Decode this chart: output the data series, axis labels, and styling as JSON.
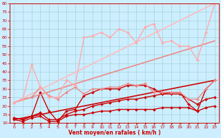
{
  "xlabel": "Vent moyen/en rafales ( km/h )",
  "xlim": [
    -0.5,
    23.5
  ],
  "ylim": [
    10,
    80
  ],
  "yticks": [
    10,
    15,
    20,
    25,
    30,
    35,
    40,
    45,
    50,
    55,
    60,
    65,
    70,
    75,
    80
  ],
  "xticks": [
    0,
    1,
    2,
    3,
    4,
    5,
    6,
    7,
    8,
    9,
    10,
    11,
    12,
    13,
    14,
    15,
    16,
    17,
    18,
    19,
    20,
    21,
    22,
    23
  ],
  "bg_color": "#cceeff",
  "grid_color": "#99cccc",
  "series": [
    {
      "x": [
        0,
        1,
        2,
        3,
        4,
        5,
        6,
        7,
        8,
        9,
        10,
        11,
        12,
        13,
        14,
        15,
        16,
        17,
        18,
        19,
        20,
        21,
        22,
        23
      ],
      "y": [
        12,
        11,
        13,
        14,
        11,
        11,
        14,
        15,
        15,
        16,
        17,
        17,
        18,
        18,
        18,
        18,
        18,
        19,
        19,
        19,
        19,
        17,
        19,
        20
      ],
      "color": "#cc0000",
      "lw": 1.0,
      "marker": "D",
      "ms": 2.0
    },
    {
      "x": [
        0,
        1,
        2,
        3,
        4,
        5,
        6,
        7,
        8,
        9,
        10,
        11,
        12,
        13,
        14,
        15,
        16,
        17,
        18,
        19,
        20,
        21,
        22,
        23
      ],
      "y": [
        13,
        12,
        14,
        16,
        12,
        12,
        15,
        17,
        18,
        20,
        21,
        22,
        23,
        24,
        24,
        25,
        26,
        27,
        27,
        27,
        24,
        21,
        24,
        25
      ],
      "color": "#cc0000",
      "lw": 1.0,
      "marker": "D",
      "ms": 2.0
    },
    {
      "x": [
        0,
        1,
        2,
        3,
        4,
        5,
        6,
        7,
        8,
        9,
        10,
        11,
        12,
        13,
        14,
        15,
        16,
        17,
        18,
        19,
        20,
        21,
        22,
        23
      ],
      "y": [
        13,
        12,
        14,
        28,
        17,
        11,
        17,
        18,
        26,
        28,
        30,
        30,
        30,
        32,
        32,
        32,
        30,
        27,
        28,
        28,
        21,
        17,
        30,
        35
      ],
      "color": "#cc0000",
      "lw": 1.0,
      "marker": "D",
      "ms": 2.0
    },
    {
      "x": [
        0,
        23
      ],
      "y": [
        12,
        35
      ],
      "color": "#cc0000",
      "lw": 1.2,
      "marker": null,
      "ms": 0
    },
    {
      "x": [
        0,
        23
      ],
      "y": [
        22,
        58
      ],
      "color": "#ee8888",
      "lw": 1.2,
      "marker": null,
      "ms": 0
    },
    {
      "x": [
        0,
        23
      ],
      "y": [
        22,
        80
      ],
      "color": "#ffbbbb",
      "lw": 1.2,
      "marker": null,
      "ms": 0
    },
    {
      "x": [
        0,
        1,
        2,
        3,
        4,
        5,
        6,
        7,
        8,
        9,
        10,
        11,
        12,
        13,
        14,
        15,
        16,
        17,
        18,
        19,
        20,
        21,
        22,
        23
      ],
      "y": [
        22,
        24,
        25,
        31,
        26,
        24,
        28,
        31,
        27,
        30,
        30,
        31,
        31,
        33,
        32,
        33,
        28,
        28,
        28,
        28,
        24,
        24,
        30,
        35
      ],
      "color": "#ee8888",
      "lw": 1.0,
      "marker": "D",
      "ms": 2.0
    },
    {
      "x": [
        0,
        1,
        2,
        3,
        4,
        5,
        6,
        7,
        8,
        9,
        10,
        11,
        12,
        13,
        14,
        15,
        16,
        17,
        18,
        19,
        20,
        21,
        22,
        23
      ],
      "y": [
        22,
        24,
        44,
        31,
        25,
        25,
        35,
        32,
        60,
        61,
        63,
        60,
        65,
        63,
        57,
        66,
        68,
        57,
        58,
        55,
        55,
        47,
        63,
        80
      ],
      "color": "#ffaaaa",
      "lw": 1.0,
      "marker": "D",
      "ms": 2.0
    }
  ]
}
